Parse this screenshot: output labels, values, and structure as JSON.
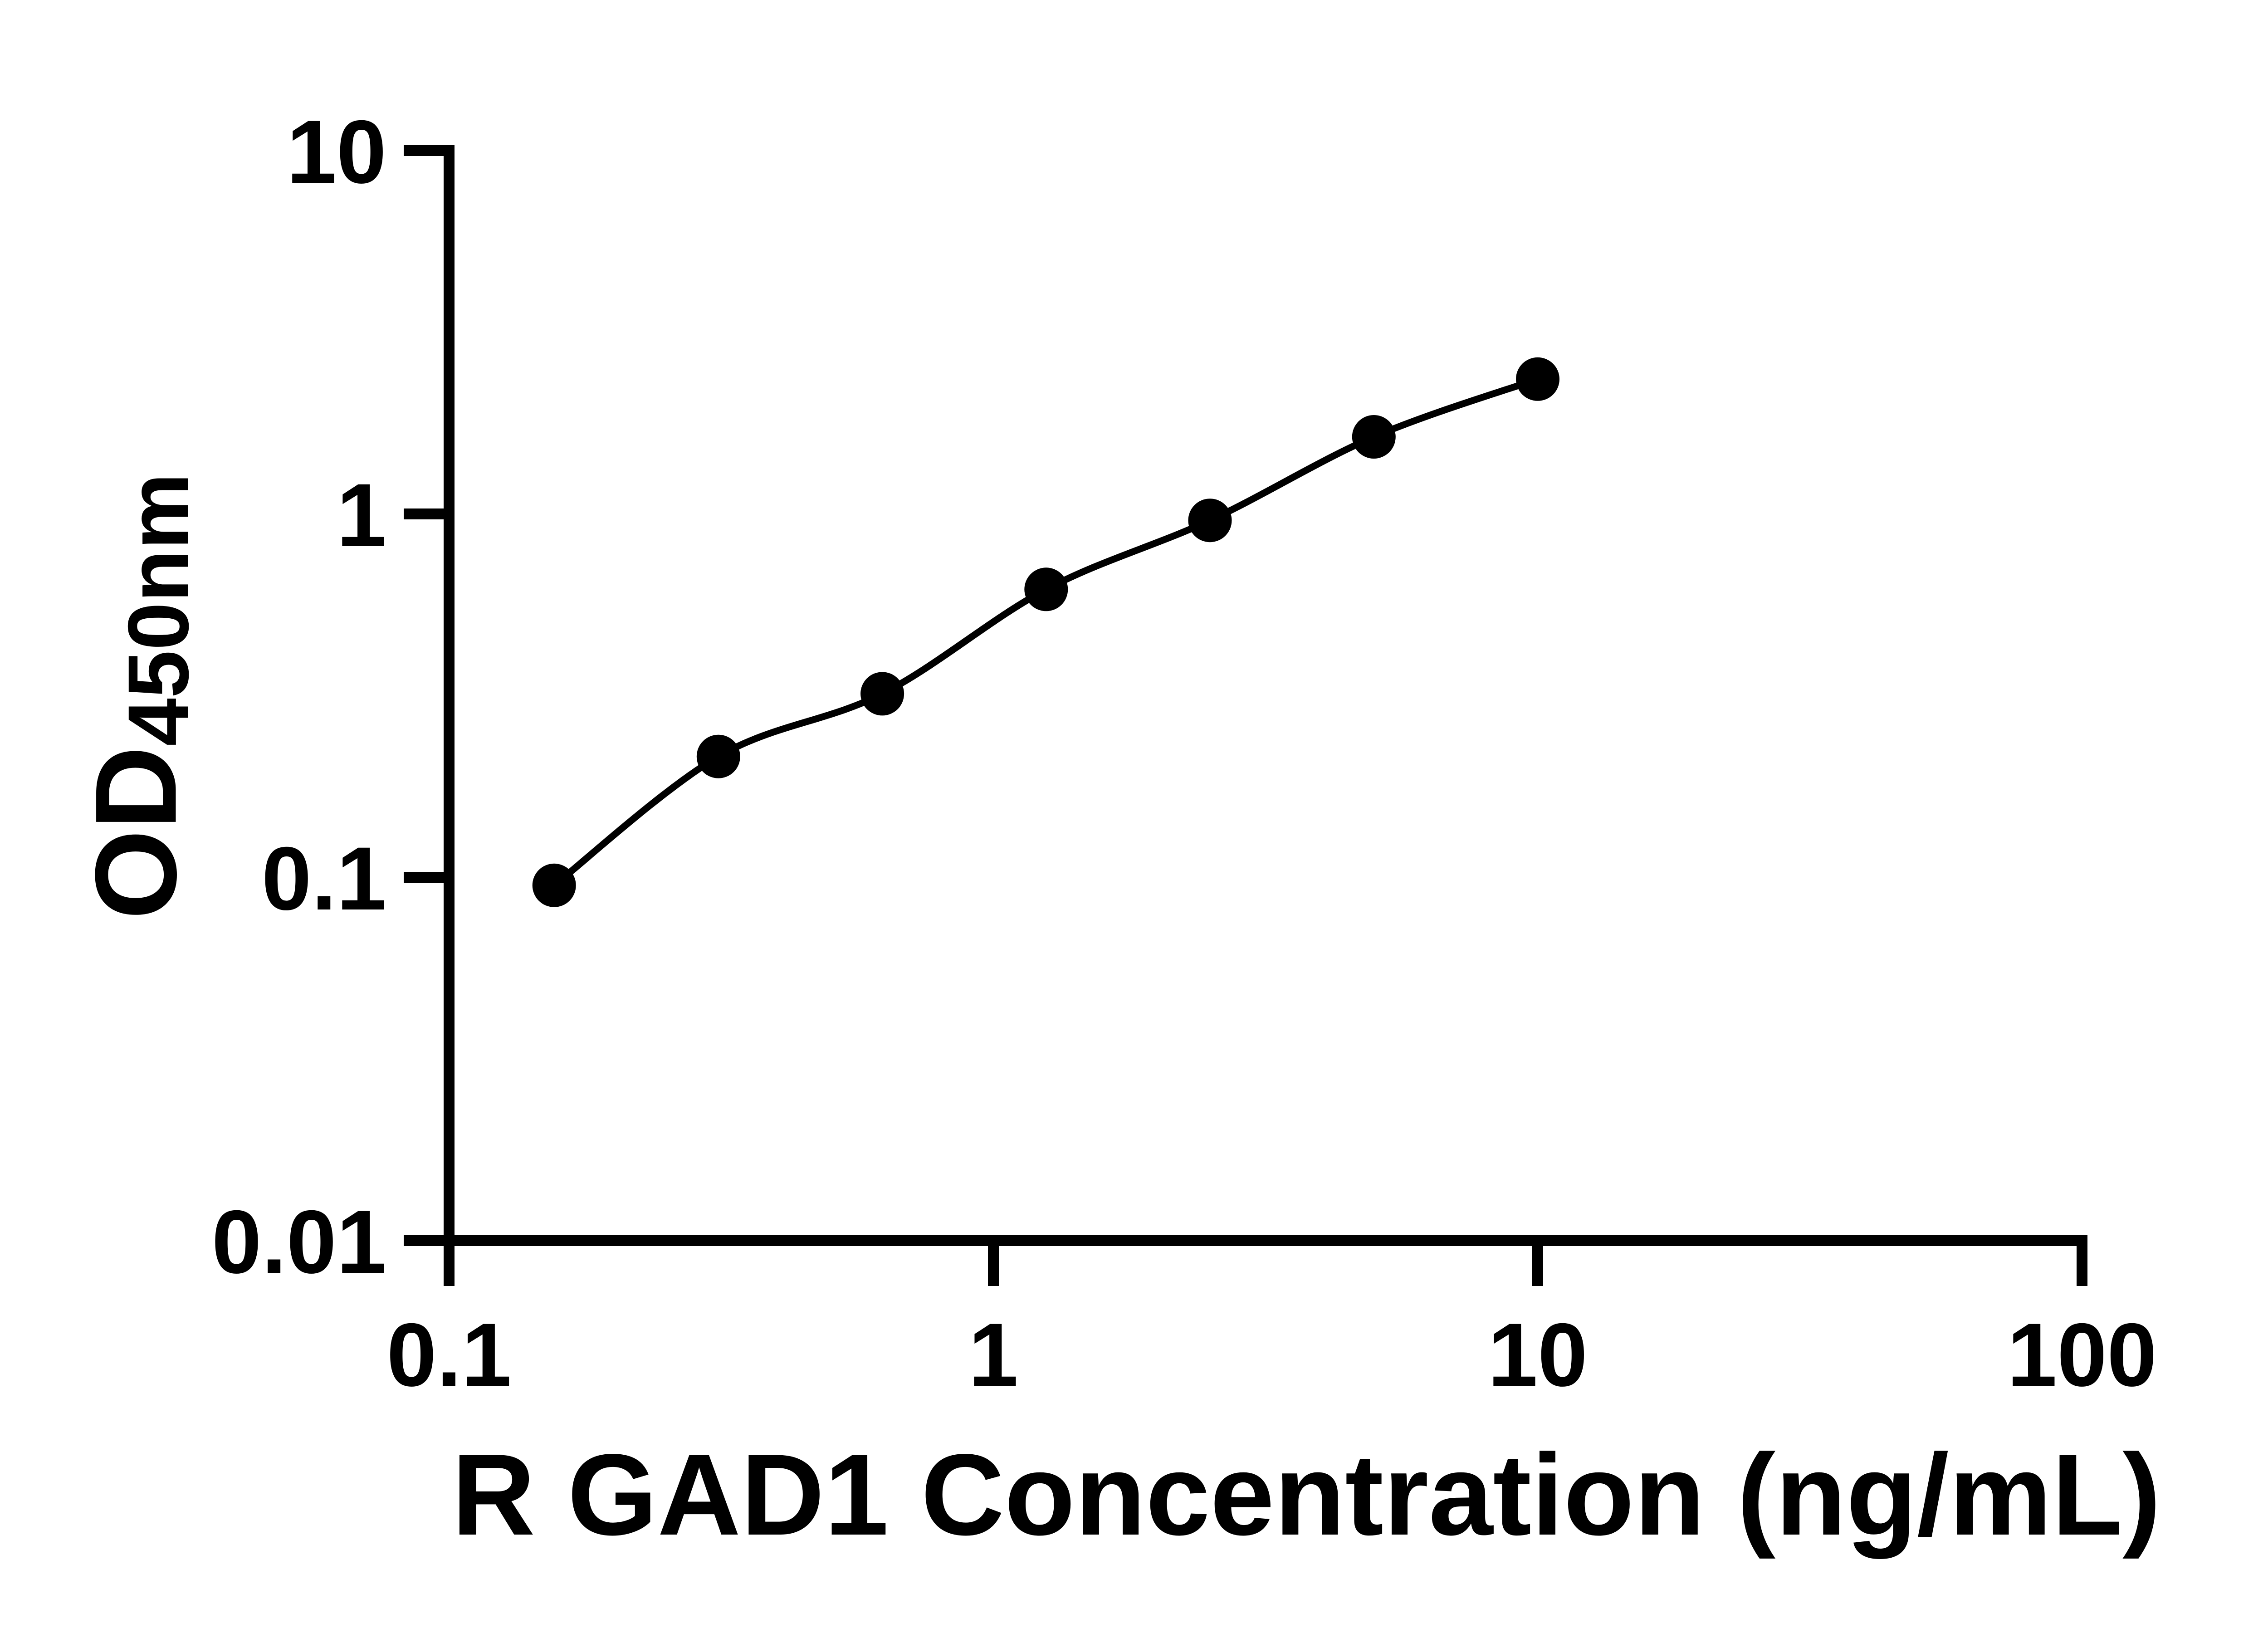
{
  "figure": {
    "background_color": "#ffffff",
    "ink_color": "#000000"
  },
  "chart_data": {
    "type": "scatter",
    "title": "",
    "xlabel": "R GAD1 Concentration (ng/mL)",
    "ylabel_main": "OD",
    "ylabel_subscript": "450nm",
    "x_scale": "log",
    "y_scale": "log",
    "xlim": [
      0.1,
      100
    ],
    "ylim": [
      0.01,
      10
    ],
    "x_ticks": [
      0.1,
      1,
      10,
      100
    ],
    "x_tick_labels": [
      "0.1",
      "1",
      "10",
      "100"
    ],
    "y_ticks": [
      10,
      1,
      0.1,
      0.01
    ],
    "y_tick_labels": [
      "10",
      "1",
      "0.1",
      "0.01"
    ],
    "grid": false,
    "legend": "none",
    "series": [
      {
        "name": "standard-curve",
        "marker": "filled-circle",
        "marker_color": "#000000",
        "line": "smooth",
        "line_color": "#000000",
        "points": [
          {
            "x": 0.156,
            "y": 0.095
          },
          {
            "x": 0.3125,
            "y": 0.215
          },
          {
            "x": 0.625,
            "y": 0.32
          },
          {
            "x": 1.25,
            "y": 0.62
          },
          {
            "x": 2.5,
            "y": 0.96
          },
          {
            "x": 5,
            "y": 1.63
          },
          {
            "x": 10,
            "y": 2.35
          }
        ]
      }
    ]
  }
}
